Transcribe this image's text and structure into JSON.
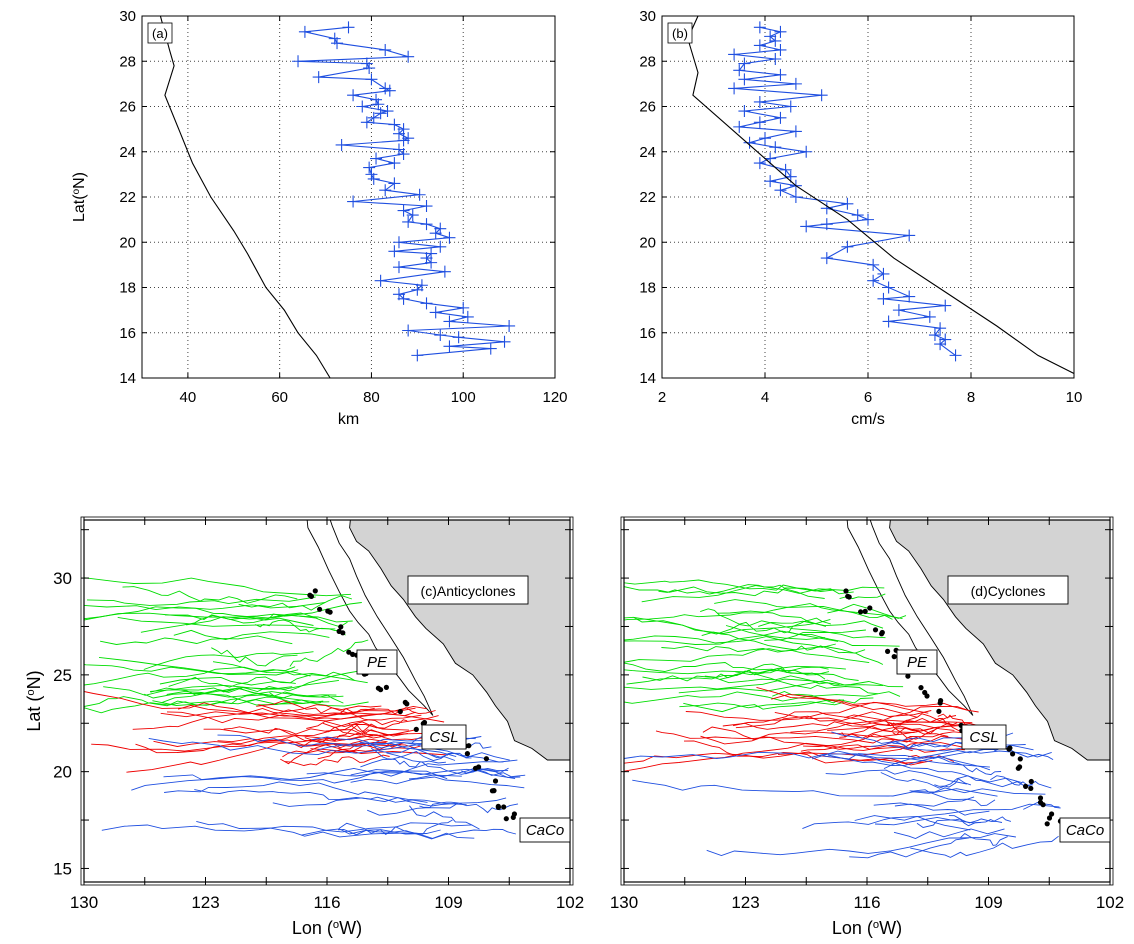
{
  "chart_data": [
    {
      "type": "line",
      "panel_label": "(a)",
      "xlabel": "km",
      "ylabel": "Lat(ºN)",
      "xlim": [
        30,
        120
      ],
      "ylim": [
        14,
        30
      ],
      "xticks": [
        40,
        60,
        80,
        100,
        120
      ],
      "yticks": [
        14,
        16,
        18,
        20,
        22,
        24,
        26,
        28,
        30
      ],
      "grid": true,
      "series": [
        {
          "color": "#1f4fe0",
          "marker": "+",
          "points": [
            [
              75,
              29.5
            ],
            [
              65.5,
              29.3
            ],
            [
              72,
              29
            ],
            [
              72.5,
              28.8
            ],
            [
              83,
              28.5
            ],
            [
              88,
              28.2
            ],
            [
              64,
              28
            ],
            [
              79,
              27.9
            ],
            [
              79.5,
              27.7
            ],
            [
              68.5,
              27.3
            ],
            [
              80,
              27.2
            ],
            [
              83,
              26.8
            ],
            [
              84,
              26.7
            ],
            [
              76,
              26.5
            ],
            [
              81,
              26.3
            ],
            [
              81.5,
              26.1
            ],
            [
              78,
              26
            ],
            [
              83.5,
              25.8
            ],
            [
              82,
              25.7
            ],
            [
              80.5,
              25.5
            ],
            [
              79,
              25.3
            ],
            [
              85,
              25.2
            ],
            [
              87,
              25
            ],
            [
              86,
              24.8
            ],
            [
              88,
              24.6
            ],
            [
              87,
              24.5
            ],
            [
              73.5,
              24.3
            ],
            [
              86,
              24.1
            ],
            [
              87,
              23.9
            ],
            [
              81,
              23.7
            ],
            [
              85,
              23.5
            ],
            [
              79.5,
              23.3
            ],
            [
              80,
              23
            ],
            [
              80.5,
              22.8
            ],
            [
              85,
              22.6
            ],
            [
              83,
              22.3
            ],
            [
              90.5,
              22.1
            ],
            [
              76,
              21.8
            ],
            [
              92,
              21.6
            ],
            [
              87,
              21.4
            ],
            [
              89,
              21.2
            ],
            [
              88,
              20.9
            ],
            [
              92,
              20.8
            ],
            [
              95,
              20.6
            ],
            [
              94,
              20.4
            ],
            [
              97,
              20.2
            ],
            [
              86,
              20
            ],
            [
              95,
              19.8
            ],
            [
              85,
              19.6
            ],
            [
              93,
              19.5
            ],
            [
              92,
              19.3
            ],
            [
              93,
              19.1
            ],
            [
              86,
              18.9
            ],
            [
              96,
              18.7
            ],
            [
              82,
              18.3
            ],
            [
              91,
              18.1
            ],
            [
              90,
              17.9
            ],
            [
              86,
              17.7
            ],
            [
              87,
              17.5
            ],
            [
              92,
              17.3
            ],
            [
              100,
              17.1
            ],
            [
              94,
              16.9
            ],
            [
              101,
              16.7
            ],
            [
              97,
              16.5
            ],
            [
              110,
              16.3
            ],
            [
              88,
              16.1
            ],
            [
              95,
              15.9
            ],
            [
              99,
              15.8
            ],
            [
              109,
              15.6
            ],
            [
              97,
              15.4
            ],
            [
              106,
              15.3
            ],
            [
              90,
              15
            ]
          ]
        },
        {
          "color": "#000000",
          "marker": "none",
          "points": [
            [
              34,
              30
            ],
            [
              36,
              28.5
            ],
            [
              37,
              27.8
            ],
            [
              35,
              26.5
            ],
            [
              38,
              25
            ],
            [
              41,
              23.5
            ],
            [
              45,
              22
            ],
            [
              50,
              20.5
            ],
            [
              53,
              19.5
            ],
            [
              57,
              18
            ],
            [
              61,
              17
            ],
            [
              64,
              16
            ],
            [
              68,
              15
            ],
            [
              71,
              14
            ]
          ]
        }
      ]
    },
    {
      "type": "line",
      "panel_label": "(b)",
      "xlabel": "cm/s",
      "ylabel": "",
      "xlim": [
        2,
        10
      ],
      "ylim": [
        14,
        30
      ],
      "xticks": [
        2,
        4,
        6,
        8,
        10
      ],
      "yticks": [
        14,
        16,
        18,
        20,
        22,
        24,
        26,
        28,
        30
      ],
      "grid": true,
      "series": [
        {
          "color": "#1f4fe0",
          "marker": "+",
          "points": [
            [
              3.9,
              29.5
            ],
            [
              4.3,
              29.3
            ],
            [
              4.1,
              29.1
            ],
            [
              4.2,
              28.9
            ],
            [
              3.9,
              28.7
            ],
            [
              4.3,
              28.5
            ],
            [
              3.4,
              28.3
            ],
            [
              4.2,
              28.1
            ],
            [
              3.6,
              27.9
            ],
            [
              3.5,
              27.6
            ],
            [
              4.3,
              27.4
            ],
            [
              3.6,
              27.2
            ],
            [
              4.6,
              27
            ],
            [
              3.4,
              26.8
            ],
            [
              5.1,
              26.5
            ],
            [
              3.9,
              26.2
            ],
            [
              4.5,
              26
            ],
            [
              3.6,
              25.8
            ],
            [
              4.3,
              25.5
            ],
            [
              3.9,
              25.3
            ],
            [
              3.5,
              25.1
            ],
            [
              4.6,
              24.9
            ],
            [
              4,
              24.6
            ],
            [
              3.7,
              24.4
            ],
            [
              4.2,
              24.2
            ],
            [
              4.8,
              24
            ],
            [
              4.1,
              23.7
            ],
            [
              3.9,
              23.5
            ],
            [
              4.4,
              23.2
            ],
            [
              4.5,
              22.9
            ],
            [
              4.1,
              22.7
            ],
            [
              4.6,
              22.5
            ],
            [
              4.3,
              22.3
            ],
            [
              4.6,
              22
            ],
            [
              5.6,
              21.7
            ],
            [
              5.2,
              21.5
            ],
            [
              5.8,
              21.2
            ],
            [
              6,
              21
            ],
            [
              5.2,
              20.8
            ],
            [
              4.8,
              20.7
            ],
            [
              6.8,
              20.3
            ],
            [
              5.6,
              19.8
            ],
            [
              5.2,
              19.3
            ],
            [
              6.1,
              19
            ],
            [
              6.3,
              18.6
            ],
            [
              6.1,
              18.3
            ],
            [
              6.4,
              18
            ],
            [
              6.8,
              17.6
            ],
            [
              6.3,
              17.5
            ],
            [
              7.5,
              17.2
            ],
            [
              6.6,
              17
            ],
            [
              7.2,
              16.7
            ],
            [
              6.4,
              16.5
            ],
            [
              7.4,
              16.2
            ],
            [
              7.3,
              15.9
            ],
            [
              7.5,
              15.7
            ],
            [
              7.4,
              15.5
            ],
            [
              7.7,
              15
            ]
          ]
        },
        {
          "color": "#000000",
          "marker": "none",
          "points": [
            [
              2.7,
              30
            ],
            [
              2.5,
              29
            ],
            [
              2.7,
              27.5
            ],
            [
              2.6,
              26.5
            ],
            [
              3.6,
              24.5
            ],
            [
              4.6,
              22.5
            ],
            [
              5.6,
              21
            ],
            [
              6.5,
              19.3
            ],
            [
              7.5,
              17.8
            ],
            [
              8.5,
              16.3
            ],
            [
              9.3,
              15
            ],
            [
              10,
              14.2
            ]
          ]
        }
      ]
    },
    {
      "type": "map",
      "title": "(c)Anticyclones",
      "xlabel": "Lon (ºW)",
      "ylabel": "Lat (ºN)",
      "xticks": [
        "130",
        "123",
        "116",
        "109",
        "102"
      ],
      "yticks": [
        "15",
        "20",
        "25",
        "30"
      ],
      "labels": [
        "PE",
        "CSL",
        "CaCo"
      ],
      "land_color": "#d3d3d3",
      "track_colors": {
        "north": "#00dd00",
        "middle": "#ee0000",
        "south": "#1f4fe0",
        "origin": "#000000"
      }
    },
    {
      "type": "map",
      "title": "(d)Cyclones",
      "xlabel": "Lon (ºW)",
      "ylabel": "",
      "xticks": [
        "130",
        "123",
        "116",
        "109",
        "102"
      ],
      "yticks": [],
      "labels": [
        "PE",
        "CSL",
        "CaCo"
      ],
      "land_color": "#d3d3d3",
      "track_colors": {
        "north": "#00dd00",
        "middle": "#ee0000",
        "south": "#1f4fe0",
        "origin": "#000000"
      }
    }
  ]
}
